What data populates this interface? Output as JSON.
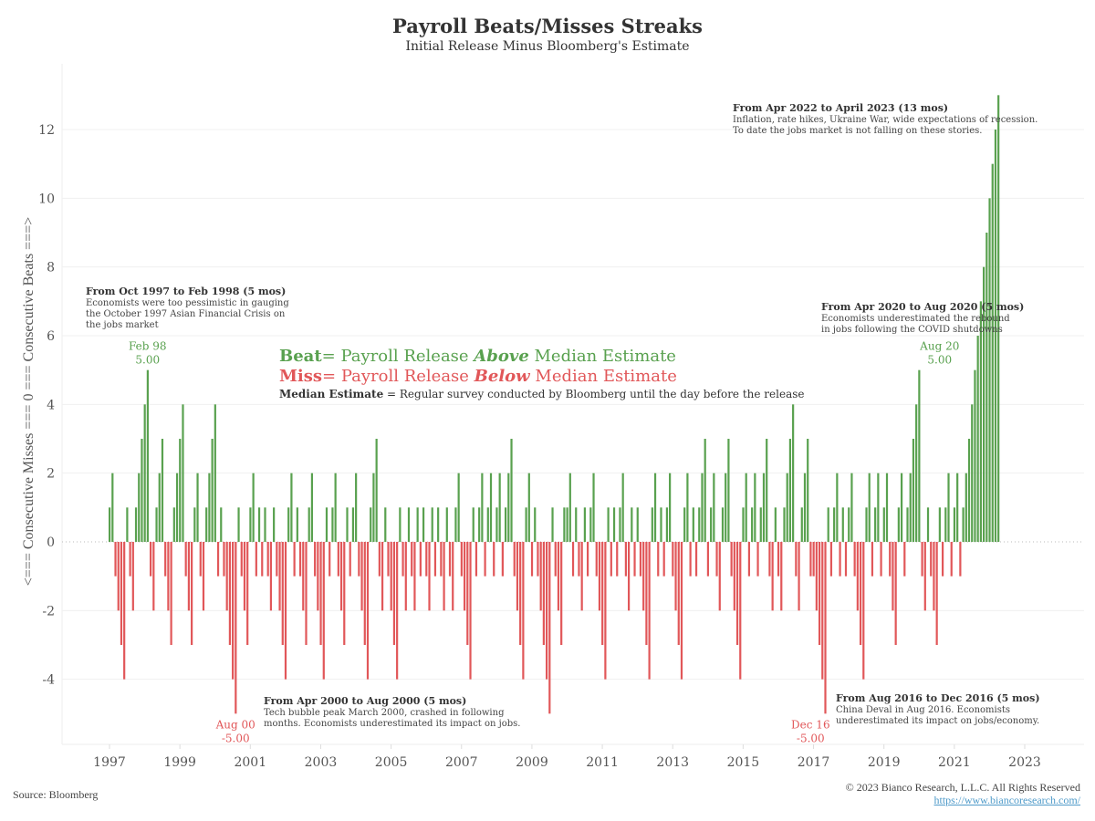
{
  "chart_data": {
    "type": "bar",
    "title": "Payroll Beats/Misses Streaks",
    "subtitle": "Initial Release Minus Bloomberg's Estimate",
    "ylabel": "<=== Consecutive Misses === 0 === Consecutive Beats ===>",
    "xlabel": "",
    "ylim": [
      -6,
      13.5
    ],
    "yticks": [
      -4,
      -2,
      0,
      2,
      4,
      6,
      8,
      10,
      12
    ],
    "xticks": [
      "1997",
      "1999",
      "2001",
      "2003",
      "2005",
      "2007",
      "2009",
      "2011",
      "2013",
      "2015",
      "2017",
      "2019",
      "2021",
      "2023"
    ],
    "x_start": "1997-01",
    "x_end": "2023-04",
    "colors": {
      "beat": "#59a14f",
      "miss": "#e15759"
    },
    "values": [
      1,
      2,
      -1,
      -2,
      -3,
      -4,
      1,
      -1,
      -2,
      1,
      2,
      3,
      4,
      5,
      -1,
      -2,
      1,
      2,
      3,
      -1,
      -2,
      -3,
      1,
      2,
      3,
      4,
      -1,
      -2,
      -3,
      1,
      2,
      -1,
      -2,
      1,
      2,
      3,
      4,
      -1,
      1,
      -1,
      -2,
      -3,
      -4,
      -5,
      1,
      -1,
      -2,
      -3,
      1,
      2,
      -1,
      1,
      -1,
      1,
      -1,
      -2,
      1,
      -1,
      -2,
      -3,
      -4,
      1,
      2,
      -1,
      1,
      -1,
      -2,
      -3,
      1,
      2,
      -1,
      -2,
      -3,
      -4,
      1,
      -1,
      1,
      2,
      -1,
      -2,
      -3,
      1,
      -1,
      1,
      2,
      -1,
      -2,
      -3,
      -4,
      1,
      2,
      3,
      -1,
      -2,
      1,
      -1,
      -2,
      -3,
      -4,
      1,
      -1,
      -2,
      1,
      -1,
      -2,
      1,
      -1,
      1,
      -1,
      -2,
      1,
      -1,
      1,
      -1,
      -2,
      1,
      -1,
      -2,
      1,
      2,
      -1,
      -2,
      -3,
      -4,
      1,
      -1,
      1,
      2,
      -1,
      1,
      2,
      -1,
      1,
      2,
      -1,
      1,
      2,
      3,
      -1,
      -2,
      -3,
      -4,
      1,
      2,
      -1,
      1,
      -1,
      -2,
      -3,
      -4,
      -5,
      1,
      -1,
      -2,
      -3,
      1,
      1,
      2,
      -1,
      1,
      -1,
      -2,
      1,
      -1,
      1,
      2,
      -1,
      -2,
      -3,
      -4,
      1,
      -1,
      1,
      -1,
      1,
      2,
      -1,
      -2,
      1,
      -1,
      1,
      -1,
      -2,
      -3,
      -4,
      1,
      2,
      -1,
      1,
      -1,
      1,
      2,
      -1,
      -2,
      -3,
      -4,
      1,
      2,
      -1,
      1,
      -1,
      1,
      2,
      3,
      -1,
      1,
      2,
      -1,
      -2,
      1,
      2,
      3,
      -1,
      -2,
      -3,
      -4,
      1,
      2,
      -1,
      1,
      2,
      -1,
      1,
      2,
      3,
      -1,
      -2,
      1,
      -1,
      -2,
      1,
      2,
      3,
      4,
      -1,
      -2,
      1,
      2,
      3,
      -1,
      -1,
      -2,
      -3,
      -4,
      -5,
      1,
      -1,
      1,
      2,
      -1,
      1,
      -1,
      1,
      2,
      -1,
      -2,
      -3,
      -4,
      1,
      2,
      -1,
      1,
      2,
      -1,
      1,
      2,
      -1,
      -2,
      -3,
      1,
      2,
      -1,
      1,
      2,
      3,
      4,
      5,
      -1,
      -2,
      1,
      -1,
      -2,
      -3,
      1,
      -1,
      1,
      2,
      -1,
      1,
      2,
      -1,
      1,
      2,
      3,
      4,
      5,
      6,
      7,
      8,
      9,
      10,
      11,
      12,
      13
    ],
    "annotations": [
      {
        "label": "Feb 98",
        "value": "5.00",
        "type": "beat"
      },
      {
        "label": "Aug 00",
        "value": "-5.00",
        "type": "miss"
      },
      {
        "label": "Dec 16",
        "value": "-5.00",
        "type": "miss"
      },
      {
        "label": "Aug 20",
        "value": "5.00",
        "type": "beat"
      }
    ]
  },
  "notes": {
    "n1997": {
      "heading": "From Oct 1997 to Feb 1998 (5 mos)",
      "lines": [
        "Economists were too pessimistic in gauging",
        "the October 1997 Asian Financial Crisis on",
        "the jobs market"
      ]
    },
    "n2022": {
      "heading": "From Apr 2022 to April 2023 (13 mos)",
      "lines": [
        "Inflation, rate hikes, Ukraine War, wide expectations of recession.",
        "To date the jobs market is not falling on these stories."
      ]
    },
    "n2020": {
      "heading": "From Apr 2020 to Aug 2020 (5 mos)",
      "lines": [
        "Economists underestimated the rebound",
        "in jobs following the COVID shutdowns"
      ]
    },
    "n2000": {
      "heading": "From Apr 2000 to Aug 2000 (5 mos)",
      "lines": [
        "Tech bubble peak March 2000, crashed in following",
        "months. Economists underestimated its impact on jobs."
      ]
    },
    "n2016": {
      "heading": "From Aug 2016 to Dec 2016 (5 mos)",
      "lines": [
        "China Deval in Aug 2016. Economists",
        "underestimated its impact on jobs/economy."
      ]
    }
  },
  "legend": {
    "beat_word": "Beat",
    "beat_mid": "= Payroll Release ",
    "beat_em": "Above",
    "beat_end": " Median Estimate",
    "miss_word": "Miss",
    "miss_mid": "= Payroll Release ",
    "miss_em": "Below",
    "miss_end": " Median Estimate",
    "median_word": "Median Estimate",
    "median_rest": " = Regular survey conducted by Bloomberg until the day before the release"
  },
  "footer": {
    "source": "Source: Bloomberg",
    "copyright": "© 2023 Bianco Research, L.L.C. All Rights Reserved",
    "link": "https://www.biancoresearch.com/"
  }
}
